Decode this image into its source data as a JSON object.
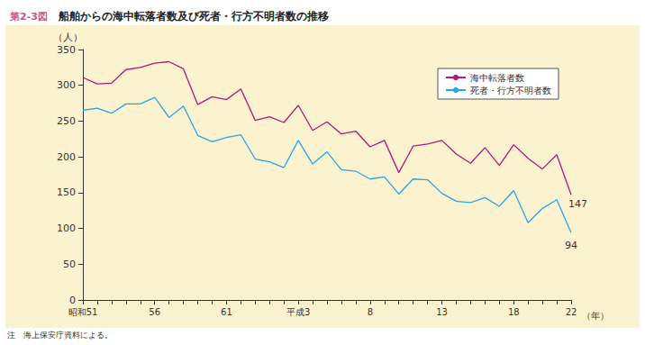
{
  "chart_data": {
    "type": "line",
    "figure_number": "第2-3図",
    "title": "船舶からの海中転落者数及び死者・行方不明者数の推移",
    "y_label": "（人）",
    "x_label": "（年）",
    "note": "注　海上保安庁資料による。",
    "categories": [
      "昭和51",
      null,
      null,
      null,
      null,
      "56",
      null,
      null,
      null,
      null,
      "61",
      null,
      null,
      null,
      null,
      "平成3",
      null,
      null,
      null,
      null,
      "8",
      null,
      null,
      null,
      null,
      "13",
      null,
      null,
      null,
      null,
      "18",
      null,
      null,
      null,
      "22"
    ],
    "series": [
      {
        "name": "海中転落者数",
        "color": "#b5177a",
        "values": [
          311,
          302,
          303,
          322,
          325,
          331,
          333,
          323,
          273,
          284,
          280,
          295,
          251,
          256,
          248,
          272,
          237,
          249,
          232,
          236,
          214,
          223,
          178,
          215,
          218,
          223,
          204,
          191,
          213,
          188,
          217,
          198,
          183,
          203,
          147
        ]
      },
      {
        "name": "死者・行方不明者数",
        "color": "#29a6e0",
        "values": [
          265,
          268,
          261,
          274,
          274,
          283,
          255,
          271,
          230,
          221,
          227,
          231,
          197,
          193,
          185,
          223,
          190,
          207,
          182,
          180,
          169,
          172,
          148,
          169,
          168,
          149,
          138,
          136,
          143,
          131,
          153,
          108,
          128,
          140,
          94
        ]
      }
    ],
    "annotations": [
      {
        "series": "海中転落者数",
        "index": 34,
        "text": "147"
      },
      {
        "series": "死者・行方不明者数",
        "index": 34,
        "text": "94"
      }
    ],
    "ylim": [
      0,
      350
    ],
    "yticks": [
      0,
      50,
      100,
      150,
      200,
      250,
      300,
      350
    ],
    "grid": false,
    "legend": "upper right"
  }
}
